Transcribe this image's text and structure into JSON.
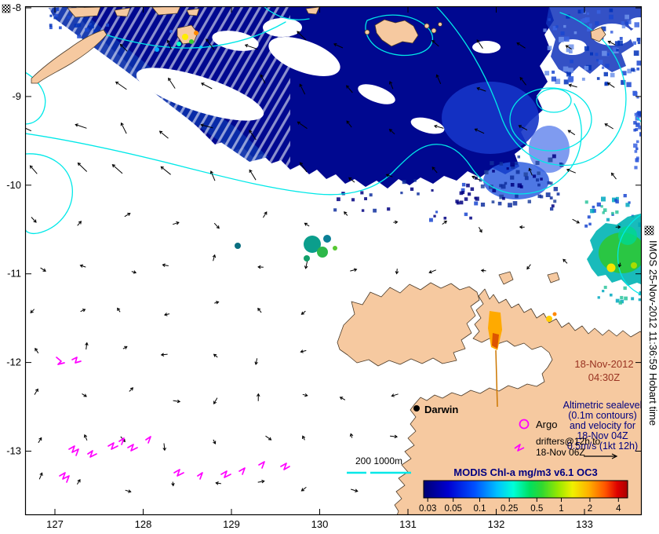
{
  "figure": {
    "type": "ocean-analysis-map"
  },
  "axes": {
    "x_ticks": [
      "127",
      "128",
      "129",
      "130",
      "131",
      "132",
      "133"
    ],
    "y_ticks": [
      "-8",
      "-9",
      "-10",
      "-11",
      "-12",
      "-13"
    ]
  },
  "timestamp": {
    "date": "18-Nov-2012",
    "time": "04:30Z"
  },
  "note": {
    "lines": [
      "Altimetric sealevel",
      "(0.1m contours)",
      "and velocity for",
      "18-Nov 04Z",
      "0.5m/s  (1kt 12h)"
    ]
  },
  "legend": {
    "argo": "Argo",
    "drifters_line1": "drifters@12h to",
    "drifters_line2": "18-Nov 06Z",
    "scalebar": "200 1000m"
  },
  "map": {
    "place_label": "Darwin"
  },
  "colorbar": {
    "title": "MODIS Chl-a mg/m3 v6.1 OC3",
    "ticks": [
      {
        "label": "0.03",
        "pos": 0.02
      },
      {
        "label": "0.05",
        "pos": 0.145
      },
      {
        "label": "0.1",
        "pos": 0.275
      },
      {
        "label": "0.25",
        "pos": 0.42
      },
      {
        "label": "0.5",
        "pos": 0.555
      },
      {
        "label": "1",
        "pos": 0.675
      },
      {
        "label": "2",
        "pos": 0.815
      },
      {
        "label": "4",
        "pos": 0.955
      }
    ],
    "gradient": [
      {
        "c": "#000073",
        "p": 0
      },
      {
        "c": "#0000d0",
        "p": 0.12
      },
      {
        "c": "#0050ff",
        "p": 0.25
      },
      {
        "c": "#00c0ff",
        "p": 0.36
      },
      {
        "c": "#00ffd8",
        "p": 0.44
      },
      {
        "c": "#00e060",
        "p": 0.52
      },
      {
        "c": "#30d830",
        "p": 0.58
      },
      {
        "c": "#98e800",
        "p": 0.66
      },
      {
        "c": "#f0f000",
        "p": 0.73
      },
      {
        "c": "#ffb000",
        "p": 0.81
      },
      {
        "c": "#ff5500",
        "p": 0.89
      },
      {
        "c": "#df0000",
        "p": 0.95
      },
      {
        "c": "#a80000",
        "p": 1
      }
    ]
  },
  "credit": "IMOS 25-Nov-2012 11:36:59 Hobart time",
  "icons": {
    "corner_marker": "checkered-stipple-icon",
    "argo_marker": "magenta-circle-icon",
    "drifter_marker": "magenta-track-icon"
  },
  "colors": {
    "land": "#f6c9a0",
    "ocean": "#ffffff",
    "contour": "#00e8e8",
    "drifter": "#ff00ff",
    "chl_low": "#000890",
    "date_text": "#993322",
    "note_text": "#000080",
    "arrow": "#000000"
  }
}
